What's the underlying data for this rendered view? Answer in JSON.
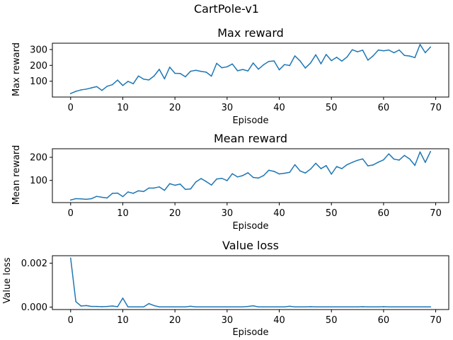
{
  "figure": {
    "suptitle": "CartPole-v1",
    "line_color": "#1f77b4"
  },
  "chart_data": [
    {
      "type": "line",
      "title": "Max reward",
      "xlabel": "Episode",
      "ylabel": "Max reward",
      "xlim": [
        -3.5,
        72.5
      ],
      "ylim": [
        0,
        340
      ],
      "xticks": [
        0,
        10,
        20,
        30,
        40,
        50,
        60,
        70
      ],
      "yticks": [
        100,
        200,
        300
      ],
      "ytick_labels": [
        "100",
        "200",
        "300"
      ],
      "grid": false,
      "x": [
        0,
        1,
        2,
        3,
        4,
        5,
        6,
        7,
        8,
        9,
        10,
        11,
        12,
        13,
        14,
        15,
        16,
        17,
        18,
        19,
        20,
        21,
        22,
        23,
        24,
        25,
        26,
        27,
        28,
        29,
        30,
        31,
        32,
        33,
        34,
        35,
        36,
        37,
        38,
        39,
        40,
        41,
        42,
        43,
        44,
        45,
        46,
        47,
        48,
        49,
        50,
        51,
        52,
        53,
        54,
        55,
        56,
        57,
        58,
        59,
        60,
        61,
        62,
        63,
        64,
        65,
        66,
        67,
        68,
        69
      ],
      "series": [
        {
          "values": [
            22,
            36,
            45,
            50,
            58,
            66,
            42,
            68,
            78,
            107,
            73,
            99,
            84,
            133,
            113,
            108,
            133,
            175,
            115,
            189,
            150,
            149,
            128,
            163,
            169,
            162,
            157,
            132,
            213,
            185,
            191,
            209,
            166,
            174,
            165,
            215,
            176,
            204,
            225,
            228,
            172,
            205,
            199,
            260,
            228,
            183,
            215,
            267,
            210,
            269,
            230,
            251,
            227,
            253,
            299,
            286,
            296,
            233,
            260,
            297,
            292,
            297,
            280,
            297,
            263,
            259,
            249,
            332,
            280,
            316
          ]
        }
      ]
    },
    {
      "type": "line",
      "title": "Mean reward",
      "xlabel": "Episode",
      "ylabel": "Mean reward",
      "xlim": [
        -3.5,
        72.5
      ],
      "ylim": [
        4,
        237
      ],
      "xticks": [
        0,
        10,
        20,
        30,
        40,
        50,
        60,
        70
      ],
      "yticks": [
        100,
        200
      ],
      "ytick_labels": [
        "100",
        "200"
      ],
      "grid": false,
      "x": [
        0,
        1,
        2,
        3,
        4,
        5,
        6,
        7,
        8,
        9,
        10,
        11,
        12,
        13,
        14,
        15,
        16,
        17,
        18,
        19,
        20,
        21,
        22,
        23,
        24,
        25,
        26,
        27,
        28,
        29,
        30,
        31,
        32,
        33,
        34,
        35,
        36,
        37,
        38,
        39,
        40,
        41,
        42,
        43,
        44,
        45,
        46,
        47,
        48,
        49,
        50,
        51,
        52,
        53,
        54,
        55,
        56,
        57,
        58,
        59,
        60,
        61,
        62,
        63,
        64,
        65,
        66,
        67,
        68,
        69
      ],
      "series": [
        {
          "values": [
            15,
            21,
            20,
            18,
            21,
            31,
            27,
            24,
            44,
            45,
            30,
            50,
            44,
            55,
            52,
            67,
            67,
            72,
            57,
            86,
            79,
            84,
            61,
            63,
            93,
            108,
            95,
            80,
            106,
            109,
            99,
            129,
            115,
            121,
            133,
            113,
            110,
            121,
            144,
            139,
            128,
            131,
            135,
            168,
            141,
            132,
            149,
            174,
            151,
            164,
            127,
            160,
            151,
            168,
            178,
            187,
            193,
            163,
            167,
            179,
            189,
            215,
            192,
            188,
            208,
            193,
            165,
            223,
            178,
            225
          ]
        }
      ]
    },
    {
      "type": "line",
      "title": "Value loss",
      "xlabel": "Episode",
      "ylabel": "Value loss",
      "xlim": [
        -3.5,
        72.5
      ],
      "ylim": [
        -0.00011,
        0.00234
      ],
      "xticks": [
        0,
        10,
        20,
        30,
        40,
        50,
        60,
        70
      ],
      "yticks": [
        0.0,
        0.002
      ],
      "ytick_labels": [
        "0.000",
        "0.002"
      ],
      "grid": false,
      "x": [
        0,
        1,
        2,
        3,
        4,
        5,
        6,
        7,
        8,
        9,
        10,
        11,
        12,
        13,
        14,
        15,
        16,
        17,
        18,
        19,
        20,
        21,
        22,
        23,
        24,
        25,
        26,
        27,
        28,
        29,
        30,
        31,
        32,
        33,
        34,
        35,
        36,
        37,
        38,
        39,
        40,
        41,
        42,
        43,
        44,
        45,
        46,
        47,
        48,
        49,
        50,
        51,
        52,
        53,
        54,
        55,
        56,
        57,
        58,
        59,
        60,
        61,
        62,
        63,
        64,
        65,
        66,
        67,
        68,
        69
      ],
      "series": [
        {
          "values": [
            0.00223,
            0.00025,
            5e-05,
            7e-05,
            3e-05,
            3e-05,
            2e-05,
            3e-05,
            5e-05,
            2e-05,
            0.00041,
            1e-05,
            1e-05,
            1e-05,
            1e-05,
            0.00016,
            7e-05,
            1e-05,
            1e-05,
            1e-05,
            1e-05,
            1e-05,
            1e-05,
            4e-05,
            1e-05,
            1e-05,
            1e-05,
            1e-05,
            1e-05,
            1e-05,
            1e-05,
            1e-05,
            1e-05,
            1e-05,
            3e-05,
            6e-05,
            1e-05,
            1e-05,
            1e-05,
            1e-05,
            1e-05,
            1e-05,
            4e-05,
            1e-05,
            1e-05,
            1e-05,
            2e-05,
            1e-05,
            1e-05,
            1e-05,
            1e-05,
            1e-05,
            1e-05,
            1e-05,
            1e-05,
            1e-05,
            2e-05,
            1e-05,
            1e-05,
            1e-05,
            2e-05,
            1e-05,
            1e-05,
            1e-05,
            1e-05,
            1e-05,
            1e-05,
            1e-05,
            1e-05,
            1e-05
          ]
        }
      ]
    }
  ]
}
